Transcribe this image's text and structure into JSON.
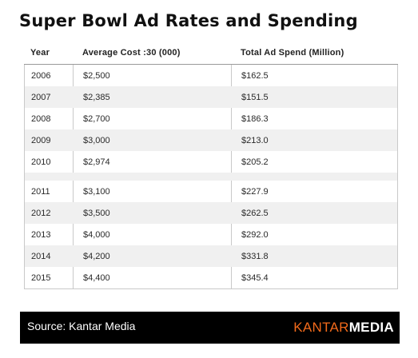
{
  "title": "Super Bowl Ad Rates and Spending",
  "table": {
    "headers": [
      "Year",
      "Average Cost :30 (000)",
      "Total Ad Spend (Million)"
    ],
    "rows": [
      [
        "2006",
        "$2,500",
        "$162.5"
      ],
      [
        "2007",
        "$2,385",
        "$151.5"
      ],
      [
        "2008",
        "$2,700",
        "$186.3"
      ],
      [
        "2009",
        "$3,000",
        "$213.0"
      ],
      [
        "2010",
        "$2,974",
        "$205.2"
      ],
      [
        "2011",
        "$3,100",
        "$227.9"
      ],
      [
        "2012",
        "$3,500",
        "$262.5"
      ],
      [
        "2013",
        "$4,000",
        "$292.0"
      ],
      [
        "2014",
        "$4,200",
        "$331.8"
      ],
      [
        "2015",
        "$4,400",
        "$345.4"
      ]
    ]
  },
  "footer": {
    "source": "Source: Kantar Media",
    "logo_part1": "KANTAR",
    "logo_part2": "MEDIA"
  },
  "colors": {
    "footer_bg": "#000000",
    "logo_accent": "#f26a1b",
    "row_alt": "#f0f0f0"
  }
}
